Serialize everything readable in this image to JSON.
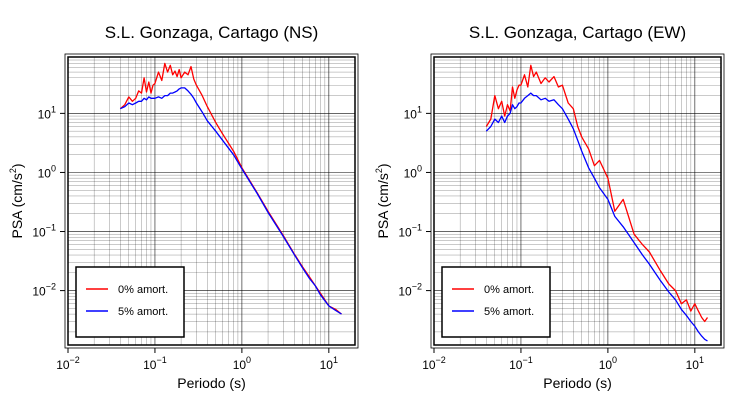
{
  "chart_data": [
    {
      "type": "line",
      "title": "S.L. Gonzaga, Cartago (NS)",
      "xlabel": "Periodo (s)",
      "ylabel": "PSA (cm/s2)",
      "xscale": "log",
      "yscale": "log",
      "xlim": [
        0.01,
        20
      ],
      "ylim": [
        0.0012,
        90
      ],
      "x_ticks": [
        0.01,
        0.1,
        1,
        10
      ],
      "y_ticks": [
        0.01,
        0.1,
        1,
        10
      ],
      "grid": true,
      "legend_position": "bottom-left",
      "series": [
        {
          "name": "0% amort.",
          "color": "#ff0000",
          "x": [
            0.04,
            0.045,
            0.05,
            0.055,
            0.06,
            0.065,
            0.07,
            0.075,
            0.08,
            0.085,
            0.09,
            0.095,
            0.1,
            0.11,
            0.12,
            0.13,
            0.14,
            0.15,
            0.16,
            0.17,
            0.18,
            0.19,
            0.2,
            0.22,
            0.24,
            0.26,
            0.28,
            0.3,
            0.35,
            0.4,
            0.5,
            0.6,
            0.8,
            1.0,
            1.5,
            2.0,
            3.0,
            4.0,
            5.0,
            6.0,
            7.0,
            8.0,
            10.0,
            12.0,
            14.0
          ],
          "values": [
            12,
            14,
            19,
            16,
            18,
            24,
            22,
            40,
            23,
            34,
            22,
            30,
            32,
            50,
            36,
            70,
            50,
            65,
            45,
            52,
            42,
            55,
            40,
            50,
            45,
            62,
            38,
            30,
            20,
            13,
            7.0,
            4.5,
            2.3,
            1.2,
            0.45,
            0.22,
            0.085,
            0.042,
            0.025,
            0.017,
            0.012,
            0.009,
            0.0055,
            0.0048,
            0.004
          ]
        },
        {
          "name": "5% amort.",
          "color": "#0000ff",
          "x": [
            0.04,
            0.045,
            0.05,
            0.055,
            0.06,
            0.065,
            0.07,
            0.075,
            0.08,
            0.085,
            0.09,
            0.095,
            0.1,
            0.11,
            0.12,
            0.13,
            0.14,
            0.15,
            0.16,
            0.17,
            0.18,
            0.19,
            0.2,
            0.22,
            0.24,
            0.26,
            0.28,
            0.3,
            0.35,
            0.4,
            0.5,
            0.6,
            0.8,
            1.0,
            1.5,
            2.0,
            3.0,
            4.0,
            5.0,
            6.0,
            7.0,
            8.0,
            10.0,
            12.0,
            14.0
          ],
          "values": [
            12,
            13,
            15,
            14,
            15,
            16,
            16,
            18,
            17,
            19,
            18,
            18,
            18,
            19,
            18,
            20,
            20,
            22,
            22,
            23,
            24,
            26,
            27,
            27,
            24,
            21,
            18,
            15,
            10.5,
            7.5,
            5.0,
            3.5,
            2.0,
            1.15,
            0.44,
            0.21,
            0.082,
            0.041,
            0.024,
            0.016,
            0.012,
            0.0085,
            0.0055,
            0.0046,
            0.004
          ]
        }
      ]
    },
    {
      "type": "line",
      "title": "S.L. Gonzaga, Cartago (EW)",
      "xlabel": "Periodo (s)",
      "ylabel": "PSA (cm/s2)",
      "xscale": "log",
      "yscale": "log",
      "xlim": [
        0.01,
        20
      ],
      "ylim": [
        0.0012,
        90
      ],
      "x_ticks": [
        0.01,
        0.1,
        1,
        10
      ],
      "y_ticks": [
        0.01,
        0.1,
        1,
        10
      ],
      "grid": true,
      "legend_position": "bottom-left",
      "series": [
        {
          "name": "0% amort.",
          "color": "#ff0000",
          "x": [
            0.04,
            0.045,
            0.05,
            0.055,
            0.06,
            0.065,
            0.07,
            0.075,
            0.08,
            0.085,
            0.09,
            0.095,
            0.1,
            0.11,
            0.12,
            0.13,
            0.14,
            0.15,
            0.17,
            0.19,
            0.21,
            0.24,
            0.27,
            0.3,
            0.35,
            0.4,
            0.45,
            0.5,
            0.6,
            0.7,
            0.8,
            1.0,
            1.2,
            1.5,
            2.0,
            2.5,
            3.0,
            4.0,
            5.0,
            6.0,
            7.0,
            8.0,
            9.0,
            10.0,
            11.0,
            12.0,
            13.0,
            14.0
          ],
          "values": [
            6,
            8,
            20,
            12,
            16,
            9,
            14,
            11,
            28,
            18,
            25,
            30,
            30,
            45,
            28,
            65,
            42,
            50,
            32,
            40,
            34,
            42,
            28,
            30,
            15,
            12,
            6.0,
            4.0,
            2.5,
            1.3,
            1.6,
            0.8,
            0.22,
            0.35,
            0.09,
            0.06,
            0.045,
            0.022,
            0.013,
            0.01,
            0.006,
            0.007,
            0.0045,
            0.006,
            0.0045,
            0.0035,
            0.003,
            0.0035
          ]
        },
        {
          "name": "5% amort.",
          "color": "#0000ff",
          "x": [
            0.04,
            0.045,
            0.05,
            0.055,
            0.06,
            0.065,
            0.07,
            0.075,
            0.08,
            0.085,
            0.09,
            0.095,
            0.1,
            0.11,
            0.12,
            0.13,
            0.14,
            0.15,
            0.17,
            0.19,
            0.21,
            0.24,
            0.27,
            0.3,
            0.35,
            0.4,
            0.45,
            0.5,
            0.6,
            0.7,
            0.8,
            1.0,
            1.2,
            1.5,
            2.0,
            2.5,
            3.0,
            4.0,
            5.0,
            6.0,
            7.0,
            8.0,
            9.0,
            10.0,
            11.0,
            12.0,
            13.0,
            14.0
          ],
          "values": [
            5,
            6,
            8,
            7,
            9,
            7,
            9,
            10,
            14,
            12,
            13,
            15,
            15,
            18,
            20,
            22,
            20,
            20,
            17,
            18,
            16,
            17,
            14,
            12,
            8,
            5.5,
            3.5,
            2.3,
            1.2,
            0.8,
            0.55,
            0.35,
            0.18,
            0.12,
            0.065,
            0.04,
            0.028,
            0.015,
            0.0095,
            0.007,
            0.0048,
            0.0038,
            0.003,
            0.0025,
            0.002,
            0.0017,
            0.0015,
            0.0014
          ]
        }
      ]
    }
  ]
}
